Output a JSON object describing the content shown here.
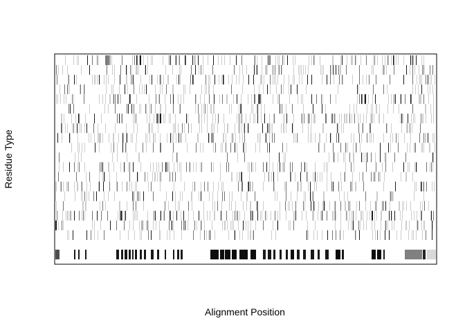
{
  "chart_data": {
    "type": "heatmap",
    "title": "",
    "xlabel": "Alignment Position",
    "ylabel": "Residue Type",
    "x_ticks": [],
    "y_ticks": [],
    "grid": false,
    "legend": "none",
    "n_positions": 550,
    "n_residue_rows": 21,
    "rows": [
      {
        "index": 0,
        "segments": [
          [
            72,
            78,
            0.5
          ],
          [
            78,
            80,
            0.3
          ]
        ],
        "density": 0.16,
        "seed": 3
      },
      {
        "index": 1,
        "segments": [],
        "density": 0.12,
        "seed": 7
      },
      {
        "index": 2,
        "segments": [],
        "density": 0.18,
        "seed": 11
      },
      {
        "index": 3,
        "segments": [],
        "density": 0.1,
        "seed": 13
      },
      {
        "index": 4,
        "segments": [],
        "density": 0.14,
        "seed": 17
      },
      {
        "index": 5,
        "segments": [],
        "density": 0.11,
        "seed": 19
      },
      {
        "index": 6,
        "segments": [],
        "density": 0.2,
        "seed": 23
      },
      {
        "index": 7,
        "segments": [],
        "density": 0.15,
        "seed": 29
      },
      {
        "index": 8,
        "segments": [],
        "density": 0.17,
        "seed": 31
      },
      {
        "index": 9,
        "segments": [],
        "density": 0.13,
        "seed": 37
      },
      {
        "index": 10,
        "segments": [],
        "density": 0.09,
        "seed": 41
      },
      {
        "index": 11,
        "segments": [],
        "density": 0.14,
        "seed": 43
      },
      {
        "index": 12,
        "segments": [],
        "density": 0.12,
        "seed": 47
      },
      {
        "index": 13,
        "segments": [],
        "density": 0.16,
        "seed": 53
      },
      {
        "index": 14,
        "segments": [],
        "density": 0.13,
        "seed": 59
      },
      {
        "index": 15,
        "segments": [],
        "density": 0.15,
        "seed": 61
      },
      {
        "index": 16,
        "segments": [],
        "density": 0.18,
        "seed": 67
      },
      {
        "index": 17,
        "segments": [],
        "density": 0.16,
        "seed": 71
      },
      {
        "index": 18,
        "segments": [],
        "density": 0.14,
        "seed": 73
      },
      {
        "index": 19,
        "segments": [],
        "density": 0.0,
        "seed": 79
      },
      {
        "index": 20,
        "gap_row": true,
        "segments": [
          [
            0,
            6,
            0.7
          ],
          [
            27,
            29,
            0.9
          ],
          [
            33,
            35,
            0.9
          ],
          [
            43,
            45,
            0.9
          ],
          [
            88,
            92,
            0.9
          ],
          [
            95,
            98,
            0.9
          ],
          [
            100,
            104,
            0.9
          ],
          [
            106,
            109,
            0.9
          ],
          [
            111,
            113,
            0.9
          ],
          [
            115,
            118,
            0.9
          ],
          [
            122,
            125,
            0.9
          ],
          [
            128,
            131,
            0.9
          ],
          [
            138,
            142,
            0.9
          ],
          [
            147,
            150,
            0.9
          ],
          [
            158,
            160,
            0.9
          ],
          [
            170,
            172,
            0.9
          ],
          [
            176,
            179,
            0.9
          ],
          [
            181,
            184,
            0.9
          ],
          [
            224,
            236,
            0.95
          ],
          [
            238,
            244,
            0.95
          ],
          [
            245,
            253,
            0.95
          ],
          [
            255,
            262,
            0.95
          ],
          [
            266,
            278,
            0.95
          ],
          [
            282,
            290,
            0.95
          ],
          [
            300,
            304,
            0.9
          ],
          [
            307,
            312,
            0.9
          ],
          [
            315,
            318,
            0.9
          ],
          [
            324,
            327,
            0.9
          ],
          [
            333,
            336,
            0.9
          ],
          [
            340,
            345,
            0.95
          ],
          [
            349,
            353,
            0.9
          ],
          [
            358,
            362,
            0.9
          ],
          [
            369,
            374,
            0.9
          ],
          [
            379,
            382,
            0.9
          ],
          [
            390,
            395,
            0.9
          ],
          [
            405,
            412,
            0.95
          ],
          [
            414,
            417,
            0.9
          ],
          [
            457,
            463,
            0.95
          ],
          [
            465,
            471,
            0.95
          ],
          [
            474,
            476,
            0.9
          ],
          [
            505,
            530,
            0.5
          ],
          [
            531,
            535,
            0.85
          ],
          [
            537,
            550,
            0.15
          ]
        ],
        "density": 0.0,
        "seed": 83
      }
    ]
  }
}
